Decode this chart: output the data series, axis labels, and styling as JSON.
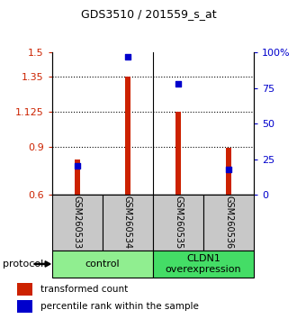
{
  "title": "GDS3510 / 201559_s_at",
  "samples": [
    "GSM260533",
    "GSM260534",
    "GSM260535",
    "GSM260536"
  ],
  "red_values": [
    0.82,
    1.35,
    1.125,
    0.895
  ],
  "blue_pct": [
    20,
    97,
    78,
    18
  ],
  "ylim_left": [
    0.6,
    1.5
  ],
  "ylim_right": [
    0,
    100
  ],
  "yticks_left": [
    0.6,
    0.9,
    1.125,
    1.35,
    1.5
  ],
  "yticks_left_labels": [
    "0.6",
    "0.9",
    "1.125",
    "1.35",
    "1.5"
  ],
  "yticks_right": [
    0,
    25,
    50,
    75,
    100
  ],
  "yticks_right_labels": [
    "0",
    "25",
    "50",
    "75",
    "100%"
  ],
  "hlines": [
    0.9,
    1.125,
    1.35
  ],
  "groups": [
    {
      "label": "control",
      "samples": [
        0,
        1
      ],
      "color": "#90ee90"
    },
    {
      "label": "CLDN1\noverexpression",
      "samples": [
        2,
        3
      ],
      "color": "#44dd66"
    }
  ],
  "bar_color": "#cc2200",
  "dot_color": "#0000cc",
  "bar_width": 0.1,
  "dot_size": 22,
  "left_tick_color": "#cc2200",
  "right_tick_color": "#0000cc",
  "protocol_label": "protocol",
  "legend_red": "transformed count",
  "legend_blue": "percentile rank within the sample",
  "bg_xticklabel": "#c8c8c8",
  "xticklabel_fontsize": 7,
  "title_fontsize": 9
}
